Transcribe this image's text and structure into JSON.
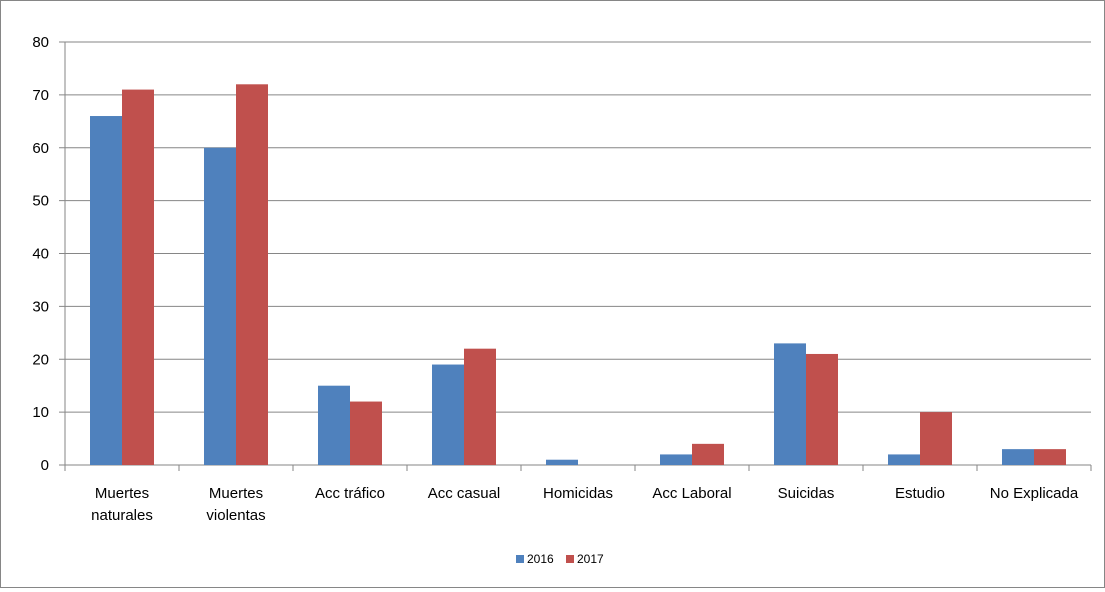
{
  "chart_data": {
    "type": "bar",
    "title": "",
    "xlabel": "",
    "ylabel": "",
    "ylim": [
      0,
      80
    ],
    "yticks": [
      0,
      10,
      20,
      30,
      40,
      50,
      60,
      70,
      80
    ],
    "grid": true,
    "legend_position": "bottom",
    "categories": [
      [
        "Muertes",
        "naturales"
      ],
      [
        "Muertes",
        "violentas"
      ],
      [
        "Acc tráfico"
      ],
      [
        "Acc casual"
      ],
      [
        "Homicidas"
      ],
      [
        "Acc Laboral"
      ],
      [
        "Suicidas"
      ],
      [
        "Estudio"
      ],
      [
        "No Explicada"
      ]
    ],
    "series": [
      {
        "name": "2016",
        "color": "#4F81BD",
        "values": [
          66,
          60,
          15,
          19,
          1,
          2,
          23,
          2,
          3
        ]
      },
      {
        "name": "2017",
        "color": "#C0504D",
        "values": [
          71,
          72,
          12,
          22,
          0,
          4,
          21,
          10,
          3
        ]
      }
    ]
  }
}
